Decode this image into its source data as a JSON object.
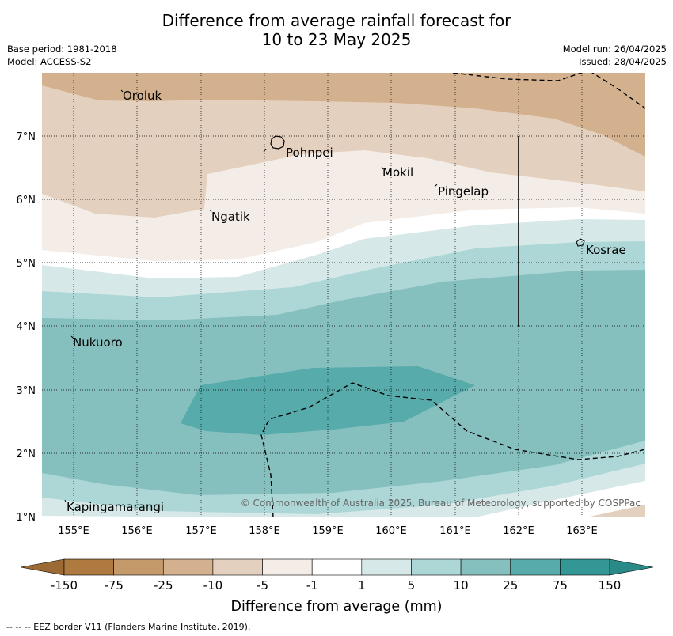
{
  "header": {
    "title_line1": "Difference from average rainfall forecast for",
    "title_line2": "10 to 23 May 2025",
    "base_period": "Base period: 1981-2018",
    "model": "Model: ACCESS-S2",
    "model_run": "Model run: 26/04/2025",
    "issued": "Issued: 28/04/2025"
  },
  "map": {
    "lat_ticks": [
      "7°N",
      "6°N",
      "5°N",
      "4°N",
      "3°N",
      "2°N",
      "1°N"
    ],
    "lon_ticks": [
      "155°E",
      "156°E",
      "157°E",
      "158°E",
      "159°E",
      "160°E",
      "161°E",
      "162°E",
      "163°E"
    ],
    "places": {
      "oroluk": "Oroluk",
      "pohnpei": "Pohnpei",
      "mokil": "Mokil",
      "pingelap": "Pingelap",
      "ngatik": "Ngatik",
      "kosrae": "Kosrae",
      "nukuoro": "Nukuoro",
      "kapingamarangi": "Kapingamarangi"
    },
    "copyright": "© Commonwealth of Australia 2025, Bureau of Meteorology, supported by COSPPac"
  },
  "colorbar": {
    "labels": [
      "-150",
      "-75",
      "-25",
      "-10",
      "-5",
      "-1",
      "1",
      "5",
      "10",
      "25",
      "75",
      "150"
    ],
    "colors": [
      "#af7a40",
      "#c49a6a",
      "#d4b18e",
      "#e4d0be",
      "#f4ece6",
      "#ffffff",
      "#d6e9e8",
      "#add6d6",
      "#85c0bf",
      "#58abab",
      "#339795"
    ],
    "under_color": "#9b6a35",
    "over_color": "#2a8a88",
    "title": "Difference from average (mm)"
  },
  "footnote": "--  --  -- EEZ border V11 (Flanders Marine Institute, 2019)."
}
